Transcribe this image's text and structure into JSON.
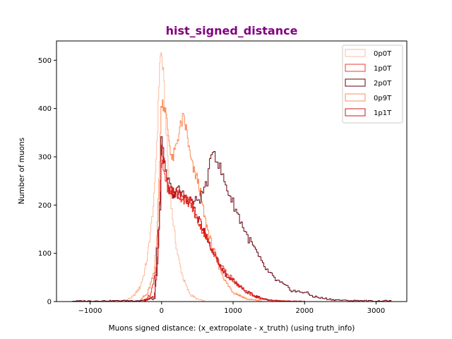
{
  "chart_data": {
    "type": "histogram-step",
    "title": "hist_signed_distance",
    "xlabel": "Muons signed distance: (x_extropolate - x_truth) (using truth_info)",
    "ylabel": "Number of muons",
    "xlim": [
      -1470,
      3430
    ],
    "ylim": [
      0,
      540
    ],
    "xticks": [
      -1000,
      0,
      1000,
      2000,
      3000
    ],
    "xtick_labels": [
      "−1000",
      "0",
      "1000",
      "2000",
      "3000"
    ],
    "yticks": [
      0,
      100,
      200,
      300,
      400,
      500
    ],
    "ytick_labels": [
      "0",
      "100",
      "200",
      "300",
      "400",
      "500"
    ],
    "grid": false,
    "legend_position": "top-right",
    "colors": {
      "title": "#800080",
      "0p0T": "#fcbba1",
      "1p0T": "#ef3b2c",
      "2p0T": "#67000d",
      "0p9T": "#fc8d59",
      "1p1T": "#cb181d"
    },
    "series": [
      {
        "name": "0p0T",
        "x": [
          -600,
          -500,
          -400,
          -300,
          -250,
          -200,
          -150,
          -100,
          -50,
          -25,
          0,
          25,
          50,
          100,
          150,
          200,
          250,
          300,
          350,
          400,
          500,
          600
        ],
        "y": [
          1,
          3,
          10,
          30,
          55,
          90,
          150,
          220,
          380,
          500,
          515,
          470,
          400,
          260,
          180,
          120,
          80,
          50,
          30,
          15,
          5,
          1
        ]
      },
      {
        "name": "1p0T",
        "x": [
          -250,
          -150,
          -50,
          0,
          50,
          100,
          200,
          300,
          400,
          500,
          600,
          700,
          800,
          900,
          1000,
          1100,
          1200,
          1300,
          1400,
          1500,
          1700,
          2000
        ],
        "y": [
          2,
          15,
          90,
          290,
          260,
          230,
          225,
          215,
          205,
          170,
          140,
          110,
          80,
          60,
          45,
          30,
          18,
          10,
          6,
          3,
          1,
          0
        ]
      },
      {
        "name": "2p0T",
        "x": [
          -1250,
          -300,
          -100,
          -20,
          0,
          50,
          150,
          250,
          350,
          450,
          550,
          650,
          720,
          800,
          900,
          1000,
          1100,
          1200,
          1300,
          1400,
          1500,
          1600,
          1700,
          1800,
          1900,
          2000,
          2100,
          2200,
          2300,
          2400,
          2600,
          2800,
          3000,
          3200
        ],
        "y": [
          1,
          2,
          6,
          200,
          330,
          270,
          225,
          230,
          215,
          205,
          215,
          255,
          320,
          285,
          240,
          205,
          170,
          135,
          110,
          80,
          60,
          45,
          35,
          25,
          20,
          20,
          12,
          8,
          6,
          4,
          2,
          2,
          1,
          2
        ]
      },
      {
        "name": "0p9T",
        "x": [
          -300,
          -200,
          -100,
          -50,
          0,
          50,
          100,
          150,
          200,
          250,
          300,
          350,
          400,
          450,
          500,
          550,
          600,
          700,
          800,
          900,
          1000,
          1200,
          1400
        ],
        "y": [
          5,
          15,
          60,
          180,
          420,
          400,
          340,
          290,
          320,
          355,
          380,
          355,
          300,
          270,
          255,
          220,
          175,
          120,
          75,
          40,
          20,
          5,
          1
        ]
      },
      {
        "name": "1p1T",
        "x": [
          -250,
          -100,
          -50,
          0,
          50,
          100,
          200,
          300,
          400,
          500,
          600,
          700,
          800,
          900,
          1000,
          1100,
          1200,
          1300,
          1400,
          1500,
          1700,
          2000
        ],
        "y": [
          1,
          10,
          80,
          320,
          270,
          230,
          225,
          220,
          210,
          175,
          145,
          110,
          80,
          55,
          45,
          32,
          20,
          12,
          7,
          3,
          1,
          0
        ]
      }
    ]
  }
}
